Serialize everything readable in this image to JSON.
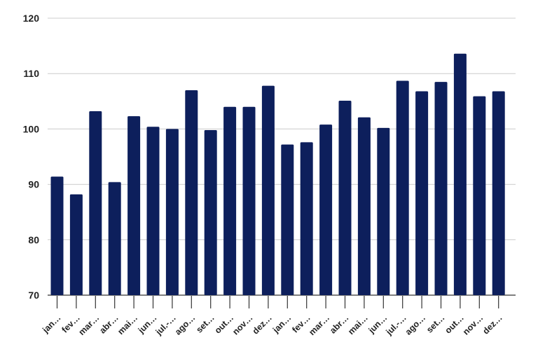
{
  "chart_data": {
    "type": "bar",
    "categories": [
      "jan…",
      "fev…",
      "mar…",
      "abr…",
      "mai…",
      "jun…",
      "jul.-…",
      "ago…",
      "set…",
      "out…",
      "nov…",
      "dez…",
      "jan…",
      "fev…",
      "mar…",
      "abr…",
      "mai…",
      "jun…",
      "jul.-…",
      "ago…",
      "set…",
      "out…",
      "nov…",
      "dez…"
    ],
    "values": [
      91.4,
      88.2,
      103.2,
      90.4,
      102.3,
      100.4,
      100.0,
      107.0,
      99.8,
      104.0,
      104.0,
      107.8,
      97.2,
      97.6,
      100.8,
      105.1,
      102.1,
      100.2,
      108.7,
      106.8,
      108.5,
      113.6,
      105.9,
      106.8
    ],
    "ylim": [
      70,
      120
    ],
    "yticks": [
      "70",
      "80",
      "90",
      "100",
      "110",
      "120"
    ],
    "grid": true,
    "bar_color": "#0d1f5c",
    "grid_color": "#cccccc"
  }
}
